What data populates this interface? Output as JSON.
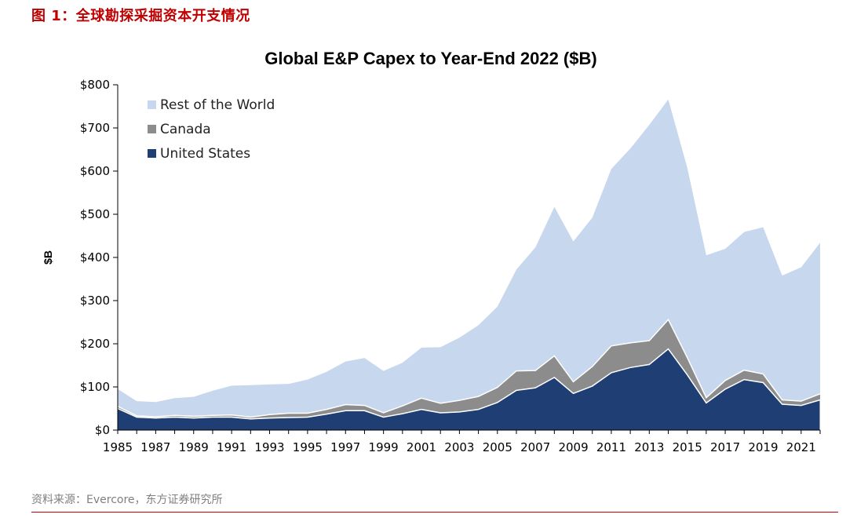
{
  "figure_caption": "图 1：全球勘探采掘资本开支情况",
  "source": "资料来源：Evercore，东方证券研究所",
  "chart_data": {
    "type": "area",
    "stacked": true,
    "title": "Global E&P Capex to Year-End 2022 ($B)",
    "ylabel": "$B",
    "xlabel": "",
    "ylim": [
      0,
      800
    ],
    "yticks": [
      0,
      100,
      200,
      300,
      400,
      500,
      600,
      700,
      800
    ],
    "ytick_labels": [
      "$0",
      "$100",
      "$200",
      "$300",
      "$400",
      "$500",
      "$600",
      "$700",
      "$800"
    ],
    "xtick_labels": [
      "1985",
      "1987",
      "1989",
      "1991",
      "1993",
      "1995",
      "1997",
      "1999",
      "2001",
      "2003",
      "2005",
      "2007",
      "2009",
      "2011",
      "2013",
      "2015",
      "2017",
      "2019",
      "2021"
    ],
    "x": [
      1985,
      1986,
      1987,
      1988,
      1989,
      1990,
      1991,
      1992,
      1993,
      1994,
      1995,
      1996,
      1997,
      1998,
      1999,
      2000,
      2001,
      2002,
      2003,
      2004,
      2005,
      2006,
      2007,
      2008,
      2009,
      2010,
      2011,
      2012,
      2013,
      2014,
      2015,
      2016,
      2017,
      2018,
      2019,
      2020,
      2021,
      2022
    ],
    "grid": false,
    "legend_position": "top-left",
    "series": [
      {
        "name": "United States",
        "color": "#1f3f74",
        "values": [
          50,
          30,
          28,
          30,
          28,
          30,
          30,
          26,
          28,
          29,
          30,
          37,
          45,
          45,
          30,
          38,
          48,
          40,
          42,
          48,
          64,
          92,
          98,
          122,
          85,
          102,
          133,
          145,
          152,
          188,
          128,
          63,
          95,
          117,
          110,
          60,
          57,
          70
        ]
      },
      {
        "name": "Canada",
        "color": "#8c8c8c",
        "values": [
          5,
          3,
          3,
          4,
          4,
          4,
          5,
          4,
          8,
          10,
          9,
          11,
          14,
          12,
          10,
          18,
          26,
          22,
          27,
          30,
          35,
          45,
          40,
          50,
          27,
          45,
          62,
          57,
          55,
          68,
          40,
          12,
          20,
          22,
          20,
          10,
          10,
          14
        ]
      },
      {
        "name": "Rest of the World",
        "color": "#c7d7ed",
        "values": [
          40,
          34,
          34,
          40,
          45,
          57,
          68,
          74,
          70,
          68,
          78,
          87,
          100,
          110,
          97,
          100,
          117,
          130,
          145,
          165,
          187,
          235,
          285,
          345,
          325,
          345,
          410,
          450,
          500,
          510,
          440,
          330,
          305,
          320,
          340,
          288,
          310,
          350
        ]
      }
    ],
    "legend_order": [
      "Rest of the World",
      "Canada",
      "United States"
    ]
  }
}
